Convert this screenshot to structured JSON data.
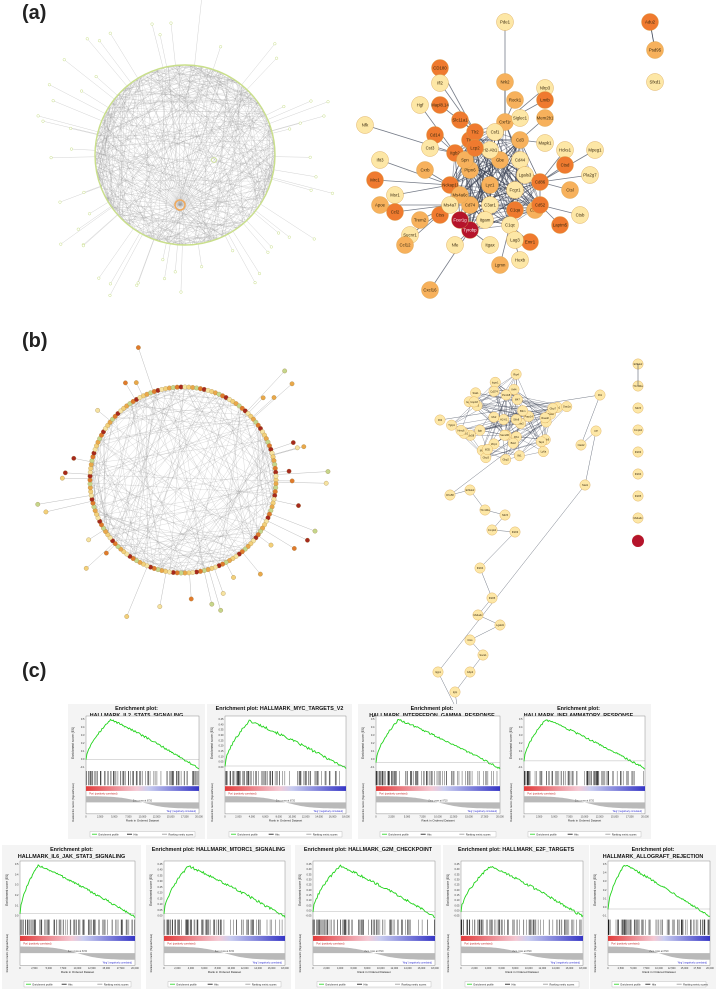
{
  "panels": {
    "a": {
      "label": "(a)"
    },
    "b": {
      "label": "(b)"
    },
    "c": {
      "label": "(c)"
    }
  },
  "network_a_nodes": [
    "Pde1",
    "Adu2",
    "Psd95",
    "Sfxd1",
    "CD180",
    "Nrk2",
    "Ifl2",
    "Mapl8.14",
    "Rock1",
    "Nlrp3",
    "Hgf",
    "Slc11a1",
    "Cxrf1r",
    "Siglec1",
    "Lmtb",
    "Mem2b1",
    "Nfk",
    "Tlr1",
    "Cd3",
    "Mapk1",
    "Hcks1",
    "Cd14",
    "Ptpn6",
    "Cst3",
    "Itgb2",
    "Spn",
    "Csf1",
    "Tlr2",
    "Gbe",
    "Cd44",
    "Lgals3",
    "Nckap1l",
    "Lyz1",
    "Fcgr1",
    "Cd86",
    "Cxrb",
    "H2-Ab1",
    "Lcp2",
    "Cd74",
    "C3ar1",
    "Itgam",
    "C1qa",
    "C1qb",
    "C1qc",
    "Tyrobp",
    "Fcer1g",
    "Nfe",
    "Ctss",
    "Trem2",
    "Pla2g7",
    "Mpeg1",
    "Ctsd",
    "Ctsl",
    "Ctsb",
    "Laptm5",
    "Lgmn",
    "Hexb",
    "Emr1",
    "Cxcl16",
    "Sucnr1",
    "Msr1",
    "Mrc1",
    "Apoe",
    "Ifit3",
    "Ccl2",
    "Ccl12",
    "Lag3",
    "Cd52",
    "Ms4a6c",
    "Ms4a7",
    "Itgax"
  ],
  "network_b_nodes": [
    "Gbp2",
    "Igtp",
    "Irgm1",
    "Iigp1",
    "Stat1",
    "Irf7",
    "Oasl2",
    "Ifit1",
    "Ifit3",
    "Isg15",
    "Usp18",
    "Rsad2",
    "Mx1",
    "Mx2",
    "Oas1a",
    "Oas2",
    "Ifi44",
    "Ifih1",
    "Ddx58",
    "Rtp4",
    "Bst2",
    "Zbp1",
    "Parp14",
    "Xaf1",
    "Cxcl10",
    "Ifi47",
    "Tgtp1",
    "Gbp3",
    "Gbp7",
    "Psmb8",
    "Psmb9",
    "Tap1",
    "H2-K1",
    "B2m",
    "Ly6a",
    "Cd274",
    "Ifi35",
    "Samd9l",
    "Slfn8",
    "Herc6",
    "Dhx58",
    "Eif2ak2",
    "Trim30a",
    "Nlrc5",
    "Cmpk2",
    "Ifi203",
    "Ifi204",
    "Ifi205",
    "Ms4a4c",
    "Lgals9",
    "Ctss",
    "Socs1"
  ],
  "enrichment_plots": [
    {
      "title": "Enrichment plot: HALLMARK_IL2_STAT5_SIGNALING",
      "yticks": [
        "0.5",
        "0.4",
        "0.3",
        "0.2",
        "0.1",
        "0.0",
        "-0.1"
      ],
      "xticks": [
        "0",
        "2,500",
        "5,000",
        "7,500",
        "10,000",
        "12,500",
        "15,000",
        "17,500",
        "20,000"
      ],
      "peak_rank": 0.22,
      "es_peak": 0.52,
      "es_min": -0.12
    },
    {
      "title": "Enrichment plot: HALLMARK_MYC_TARGETS_V2",
      "yticks": [
        "0.45",
        "0.40",
        "0.35",
        "0.30",
        "0.25",
        "0.20",
        "0.15",
        "0.10",
        "0.05",
        "0.00"
      ],
      "xticks": [
        "0",
        "2,000",
        "4,000",
        "6,000",
        "8,000",
        "10,000",
        "12,000",
        "14,000",
        "16,000",
        "18,000"
      ],
      "peak_rank": 0.2,
      "es_peak": 0.45,
      "es_min": -0.02
    },
    {
      "title": "Enrichment plot: HALLMARK_INTERFERON_GAMMA_RESPONSE",
      "yticks": [
        "0.5",
        "0.4",
        "0.3",
        "0.2",
        "0.1",
        "0.0",
        "-0.1"
      ],
      "xticks": [
        "0",
        "2,500",
        "5,000",
        "7,500",
        "10,000",
        "12,500",
        "15,000",
        "17,500",
        "20,000"
      ],
      "peak_rank": 0.18,
      "es_peak": 0.55,
      "es_min": -0.08
    },
    {
      "title": "Enrichment plot: HALLMARK_INFLAMMATORY_RESPONSE",
      "yticks": [
        "0.5",
        "0.4",
        "0.3",
        "0.2",
        "0.1",
        "0.0",
        "-0.1"
      ],
      "xticks": [
        "0",
        "2,500",
        "5,000",
        "7,500",
        "10,000",
        "12,500",
        "15,000",
        "17,500",
        "20,000"
      ],
      "peak_rank": 0.18,
      "es_peak": 0.54,
      "es_min": -0.1
    },
    {
      "title": "Enrichment plot: HALLMARK_IL6_JAK_STAT3_SIGNALING",
      "yticks": [
        "0.5",
        "0.4",
        "0.3",
        "0.2",
        "0.1",
        "0.0"
      ],
      "xticks": [
        "0",
        "2,500",
        "5,000",
        "7,500",
        "10,000",
        "12,500",
        "15,000",
        "17,500",
        "20,000"
      ],
      "peak_rank": 0.16,
      "es_peak": 0.55,
      "es_min": -0.04
    },
    {
      "title": "Enrichment plot: HALLMARK_MTORC1_SIGNALING",
      "yticks": [
        "0.45",
        "0.40",
        "0.35",
        "0.30",
        "0.25",
        "0.20",
        "0.15",
        "0.10",
        "0.05",
        "0.00"
      ],
      "xticks": [
        "0",
        "2,000",
        "4,000",
        "6,000",
        "8,000",
        "10,000",
        "12,000",
        "14,000",
        "16,000",
        "18,000"
      ],
      "peak_rank": 0.2,
      "es_peak": 0.45,
      "es_min": -0.03
    },
    {
      "title": "Enrichment plot: HALLMARK_G2M_CHECKPOINT",
      "yticks": [
        "0.45",
        "0.40",
        "0.35",
        "0.30",
        "0.25",
        "0.20",
        "0.15",
        "0.10",
        "0.05",
        "0.00",
        "-0.05"
      ],
      "xticks": [
        "0",
        "2,000",
        "4,000",
        "6,000",
        "8,000",
        "10,000",
        "12,000",
        "14,000",
        "16,000",
        "18,000"
      ],
      "peak_rank": 0.22,
      "es_peak": 0.45,
      "es_min": -0.05
    },
    {
      "title": "Enrichment plot: HALLMARK_E2F_TARGETS",
      "yticks": [
        "0.45",
        "0.40",
        "0.35",
        "0.30",
        "0.25",
        "0.20",
        "0.15",
        "0.10",
        "0.05",
        "0.00",
        "-0.05"
      ],
      "xticks": [
        "0",
        "2,000",
        "4,000",
        "6,000",
        "8,000",
        "10,000",
        "12,000",
        "14,000",
        "16,000",
        "18,000"
      ],
      "peak_rank": 0.24,
      "es_peak": 0.45,
      "es_min": -0.05
    },
    {
      "title": "Enrichment plot: HALLMARK_ALLOGRAFT_REJECTION",
      "yticks": [
        "0.5",
        "0.4",
        "0.3",
        "0.2",
        "0.1",
        "0.0",
        "-0.1"
      ],
      "xticks": [
        "0",
        "2,500",
        "5,000",
        "7,500",
        "10,000",
        "12,500",
        "15,000",
        "17,500",
        "20,000"
      ],
      "peak_rank": 0.16,
      "es_peak": 0.55,
      "es_min": -0.1
    }
  ],
  "gsea_text": {
    "ylabel_es": "Enrichment score (ES)",
    "ylabel_rank": "Ranked list metric (Signal2Noise)",
    "xlabel": "Rank in Ordered Dataset",
    "pos_label": "'Pos' (positively correlated)",
    "neg_label": "'Neg' (negatively correlated)",
    "zero_label": "Zero cross at 8720",
    "legend": [
      "Enrichment profile",
      "Hits",
      "Ranking metric scores"
    ]
  },
  "colors": {
    "node_light": "#fde7a6",
    "node_mid": "#f7b15c",
    "node_orange": "#ef7a2f",
    "node_red": "#b5142b",
    "edge": "#3c4456",
    "circle_outline": "#c9df8a",
    "es_curve": "#22d31c",
    "rank_red": "#e23a3a",
    "rank_blue": "#3535c6"
  }
}
